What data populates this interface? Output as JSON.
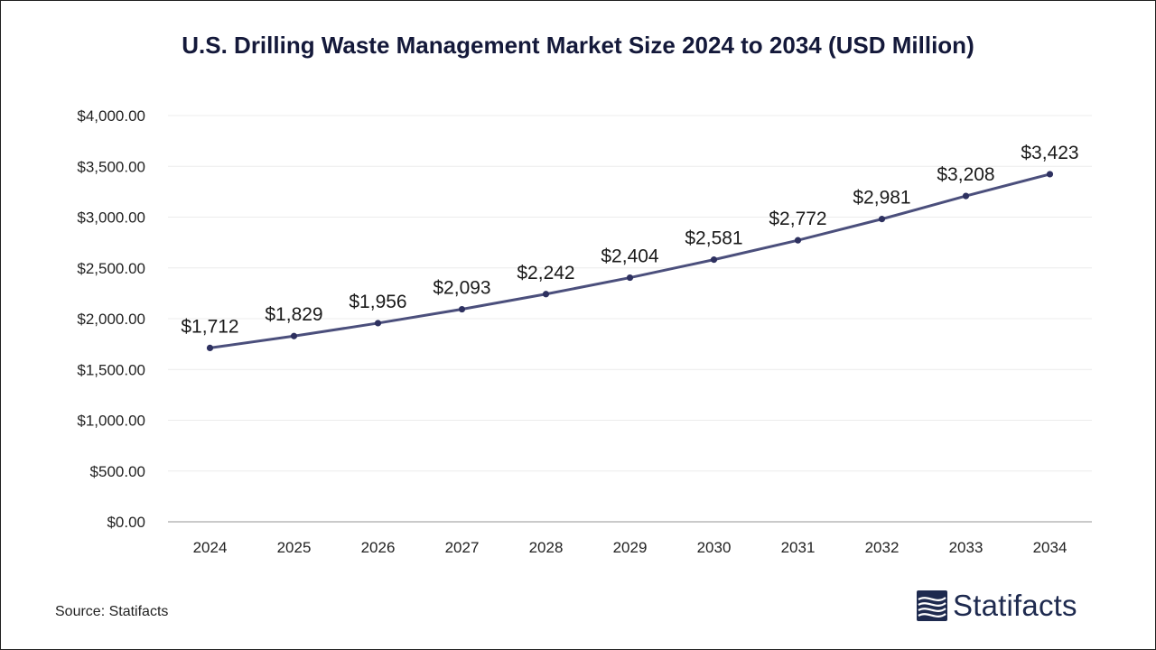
{
  "title": "U.S. Drilling Waste Management Market Size 2024 to 2034 (USD Million)",
  "source": "Source: Statifacts",
  "brand": {
    "name": "Statifacts",
    "icon": "statifacts-logo-icon",
    "color": "#1e2a4f"
  },
  "colors": {
    "line": "#4b4f7c",
    "marker": "#2e3160",
    "grid": "#ececec",
    "axis": "#b8b8b8",
    "text": "#222222"
  },
  "chart_data": {
    "type": "line",
    "title": "U.S. Drilling Waste Management Market Size 2024 to 2034 (USD Million)",
    "xlabel": "",
    "ylabel": "",
    "categories": [
      "2024",
      "2025",
      "2026",
      "2027",
      "2028",
      "2029",
      "2030",
      "2031",
      "2032",
      "2033",
      "2034"
    ],
    "series": [
      {
        "values": [
          1712,
          1829,
          1956,
          2093,
          2242,
          2404,
          2581,
          2772,
          2981,
          3208,
          3423
        ]
      }
    ],
    "data_labels": [
      "$1,712",
      "$1,829",
      "$1,956",
      "$2,093",
      "$2,242",
      "$2,404",
      "$2,581",
      "$2,772",
      "$2,981",
      "$3,208",
      "$3,423"
    ],
    "ylim": [
      0,
      4000
    ],
    "yticks": [
      0,
      500,
      1000,
      1500,
      2000,
      2500,
      3000,
      3500,
      4000
    ],
    "ytick_labels": [
      "$0.00",
      "$500.00",
      "$1,000.00",
      "$1,500.00",
      "$2,000.00",
      "$2,500.00",
      "$3,000.00",
      "$3,500.00",
      "$4,000.00"
    ],
    "grid": true,
    "legend": "none"
  }
}
